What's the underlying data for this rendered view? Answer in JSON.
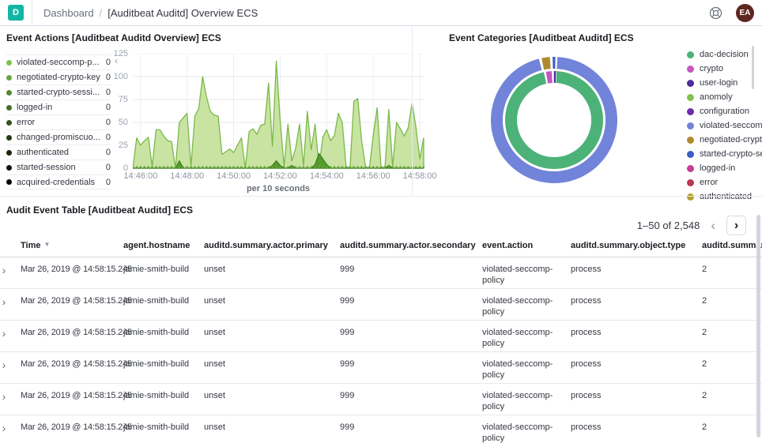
{
  "header": {
    "logo_letter": "D",
    "brand_color": "#14b5a5",
    "breadcrumb_parent": "Dashboard",
    "breadcrumb_separator": "/",
    "breadcrumb_current": "[Auditbeat Auditd] Overview ECS",
    "avatar_initials": "EA",
    "avatar_color": "#5e2720"
  },
  "panels": {
    "event_actions": {
      "title": "Event Actions [Auditbeat Auditd Overview] ECS",
      "legend": [
        {
          "label": "violated-seccomp-p...",
          "value": "0",
          "color": "#7fc24b"
        },
        {
          "label": "negotiated-crypto-key",
          "value": "0",
          "color": "#6ba53e"
        },
        {
          "label": "started-crypto-sessi...",
          "value": "0",
          "color": "#578932"
        },
        {
          "label": "logged-in",
          "value": "0",
          "color": "#446d27"
        },
        {
          "label": "error",
          "value": "0",
          "color": "#33531d"
        },
        {
          "label": "changed-promiscuo...",
          "value": "0",
          "color": "#243a13"
        },
        {
          "label": "authenticated",
          "value": "0",
          "color": "#17260b"
        },
        {
          "label": "started-session",
          "value": "0",
          "color": "#0c1505"
        },
        {
          "label": "acquired-credentials",
          "value": "0",
          "color": "#020402"
        }
      ]
    },
    "event_categories": {
      "title": "Event Categories [Auditbeat Auditd] ECS",
      "legend": [
        {
          "label": "dac-decision",
          "color": "#4cb278"
        },
        {
          "label": "crypto",
          "color": "#c657c0"
        },
        {
          "label": "user-login",
          "color": "#4f2d9f"
        },
        {
          "label": "anomoly",
          "color": "#82c24e"
        },
        {
          "label": "configuration",
          "color": "#6a2fae"
        },
        {
          "label": "violated-seccomp...",
          "color": "#7184d9"
        },
        {
          "label": "negotiated-crypto...",
          "color": "#b08b2d"
        },
        {
          "label": "started-crypto-se...",
          "color": "#3a5fc8"
        },
        {
          "label": "logged-in",
          "color": "#c23f94"
        },
        {
          "label": "error",
          "color": "#ba3651"
        },
        {
          "label": "authenticated",
          "color": "#b3a12f"
        }
      ]
    },
    "audit_table": {
      "title": "Audit Event Table [Auditbeat Auditd] ECS",
      "pagination": {
        "range_label": "1–50 of 2,548"
      },
      "columns": [
        "Time",
        "agent.hostname",
        "auditd.summary.actor.primary",
        "auditd.summary.actor.secondary",
        "event.action",
        "auditd.summary.object.type",
        "auditd.summary"
      ],
      "rows": [
        {
          "time": "Mar 26, 2019 @ 14:58:15.245",
          "hostname": "jamie-smith-build",
          "actor_primary": "unset",
          "actor_secondary": "999",
          "action": "violated-seccomp-policy",
          "object_type": "process",
          "summary": "2"
        },
        {
          "time": "Mar 26, 2019 @ 14:58:15.245",
          "hostname": "jamie-smith-build",
          "actor_primary": "unset",
          "actor_secondary": "999",
          "action": "violated-seccomp-policy",
          "object_type": "process",
          "summary": "2"
        },
        {
          "time": "Mar 26, 2019 @ 14:58:15.245",
          "hostname": "jamie-smith-build",
          "actor_primary": "unset",
          "actor_secondary": "999",
          "action": "violated-seccomp-policy",
          "object_type": "process",
          "summary": "2"
        },
        {
          "time": "Mar 26, 2019 @ 14:58:15.245",
          "hostname": "jamie-smith-build",
          "actor_primary": "unset",
          "actor_secondary": "999",
          "action": "violated-seccomp-policy",
          "object_type": "process",
          "summary": "2"
        },
        {
          "time": "Mar 26, 2019 @ 14:58:15.245",
          "hostname": "jamie-smith-build",
          "actor_primary": "unset",
          "actor_secondary": "999",
          "action": "violated-seccomp-policy",
          "object_type": "process",
          "summary": "2"
        },
        {
          "time": "Mar 26, 2019 @ 14:58:15.245",
          "hostname": "jamie-smith-build",
          "actor_primary": "unset",
          "actor_secondary": "999",
          "action": "violated-seccomp-policy",
          "object_type": "process",
          "summary": "2"
        }
      ]
    }
  },
  "chart_data": [
    {
      "type": "area",
      "title": "Event Actions [Auditbeat Auditd Overview] ECS",
      "xlabel": "per 10 seconds",
      "ylabel": "",
      "ylim": [
        0,
        125
      ],
      "yticks": [
        0,
        25,
        50,
        75,
        100,
        125
      ],
      "x_start": "14:45:40",
      "x_interval_seconds": 10,
      "x_tick_labels": [
        "14:46:00",
        "14:48:00",
        "14:50:00",
        "14:52:00",
        "14:54:00",
        "14:56:00",
        "14:58:00"
      ],
      "x_tick_indices": [
        2,
        14,
        26,
        38,
        50,
        62,
        74
      ],
      "grid": true,
      "legend_position": "left",
      "series": [
        {
          "name": "violated-seccomp-policy",
          "line_color": "#79ba49",
          "fill_color": "#c9e3a2",
          "values": [
            0,
            33,
            25,
            30,
            34,
            2,
            42,
            42,
            35,
            30,
            29,
            0,
            50,
            55,
            60,
            2,
            57,
            65,
            100,
            78,
            62,
            58,
            57,
            15,
            18,
            21,
            17,
            25,
            33,
            0,
            40,
            43,
            37,
            47,
            48,
            93,
            24,
            117,
            52,
            2,
            48,
            8,
            22,
            48,
            3,
            62,
            20,
            48,
            2,
            34,
            42,
            30,
            36,
            60,
            50,
            2,
            0,
            73,
            76,
            30,
            2,
            0,
            36,
            66,
            2,
            0,
            64,
            2,
            50,
            43,
            35,
            44,
            71,
            45,
            10,
            33
          ]
        },
        {
          "name": "negotiated-crypto-key",
          "line_color": "#3f8020",
          "fill_color": "#569b2d",
          "values": [
            0,
            0,
            0,
            0,
            0,
            0,
            0,
            0,
            0,
            0,
            0,
            0,
            8,
            0,
            0,
            0,
            0,
            0,
            0,
            0,
            0,
            0,
            0,
            0,
            0,
            0,
            0,
            0,
            0,
            0,
            0,
            0,
            0,
            0,
            0,
            0,
            3,
            8,
            3,
            0,
            0,
            3,
            0,
            0,
            0,
            0,
            0,
            4,
            16,
            10,
            4,
            0,
            0,
            0,
            0,
            0,
            0,
            0,
            0,
            0,
            0,
            0,
            0,
            0,
            0,
            0,
            3,
            0,
            0,
            0,
            0,
            0,
            0,
            0,
            0,
            0
          ]
        }
      ],
      "zero_value_series": [
        "started-crypto-session",
        "logged-in",
        "error",
        "changed-promiscuous-mode",
        "authenticated",
        "started-session",
        "acquired-credentials"
      ]
    },
    {
      "type": "pie",
      "donut": true,
      "title": "Event Categories [Auditbeat Auditd] ECS",
      "legend_position": "right",
      "rings": [
        {
          "name": "inner",
          "slices": [
            {
              "label": "dac-decision",
              "color": "#4cb278",
              "pct": 95.8
            },
            {
              "label": "crypto",
              "color": "#c657c0",
              "pct": 1.9
            },
            {
              "label": "user-login",
              "color": "#4f2d9f",
              "pct": 0.7
            }
          ]
        },
        {
          "name": "outer",
          "slices": [
            {
              "label": "violated-seccomp-policy",
              "color": "#7184d9",
              "pct": 95.3
            },
            {
              "label": "negotiated-crypto-key",
              "color": "#b08b2d",
              "pct": 2.1
            },
            {
              "label": "started-crypto-session",
              "color": "#3a5fc8",
              "pct": 0.7
            }
          ]
        }
      ]
    }
  ]
}
